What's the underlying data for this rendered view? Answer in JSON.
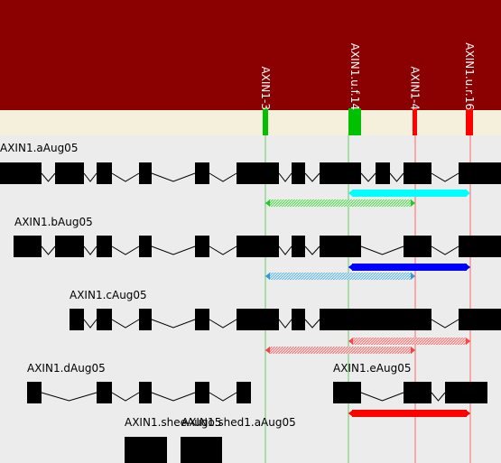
{
  "colors": {
    "header_bg": "#8b0000",
    "track_bg": "#f5f0dc",
    "canvas_bg": "#ececec",
    "exon": "#000000",
    "primer_forward": "#00c000",
    "primer_reverse": "#ff0000",
    "guide_green": "#66cc66",
    "guide_red": "#ff6666"
  },
  "primers": [
    {
      "id": "p1",
      "label": "AXIN1-3",
      "strand": "forward"
    },
    {
      "id": "p2",
      "label": "AXIN1.u.f.14",
      "strand": "forward"
    },
    {
      "id": "p3",
      "label": "AXIN1-4",
      "strand": "reverse"
    },
    {
      "id": "p4",
      "label": "AXIN1.u.r.16",
      "strand": "reverse"
    }
  ],
  "transcripts": [
    {
      "id": "t-a",
      "name": "AXIN1.aAug05"
    },
    {
      "id": "t-b",
      "name": "AXIN1.bAug05"
    },
    {
      "id": "t-c",
      "name": "AXIN1.cAug05"
    },
    {
      "id": "t-d",
      "name": "AXIN1.dAug05"
    },
    {
      "id": "t-e",
      "name": "AXIN1.eAug05"
    },
    {
      "id": "t-f",
      "name": "AXIN1.sheeAugo5"
    },
    {
      "id": "t-g",
      "name": "AXIN1.shed1.aAug05"
    }
  ],
  "amplicons": [
    {
      "id": "a1",
      "color": "#00ffff",
      "style": "solid"
    },
    {
      "id": "a2",
      "color": "#22cc22",
      "style": "hatched"
    },
    {
      "id": "a3",
      "color": "#0000ff",
      "style": "solid"
    },
    {
      "id": "a4",
      "color": "#3399dd",
      "style": "hatched"
    },
    {
      "id": "a5",
      "color": "#ff4444",
      "style": "hatched"
    },
    {
      "id": "a6",
      "color": "#ee4444",
      "style": "hatched"
    },
    {
      "id": "a7",
      "color": "#ff0000",
      "style": "solid"
    }
  ]
}
